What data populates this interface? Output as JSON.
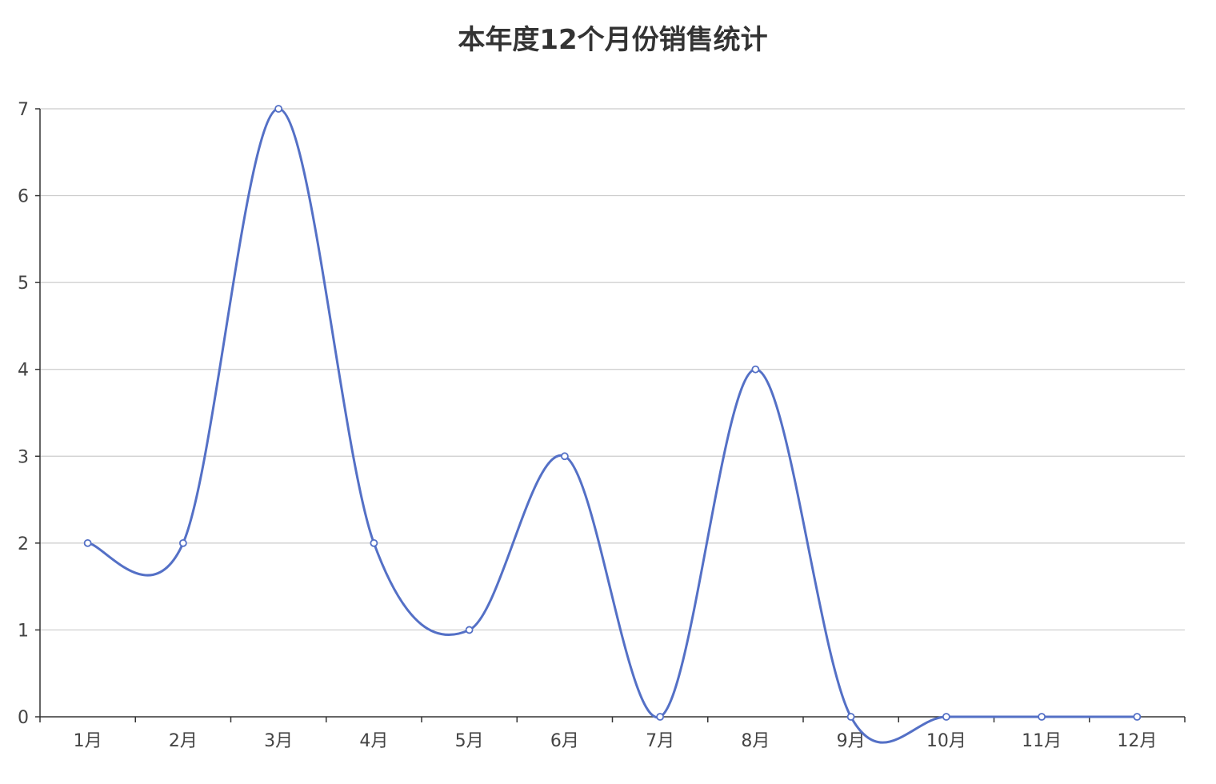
{
  "chart_data": {
    "type": "line",
    "title": "本年度12个月份销售统计",
    "categories": [
      "1月",
      "2月",
      "3月",
      "4月",
      "5月",
      "6月",
      "7月",
      "8月",
      "9月",
      "10月",
      "11月",
      "12月"
    ],
    "series": [
      {
        "values": [
          2,
          2,
          7,
          2,
          1,
          3,
          0,
          4,
          0,
          0,
          0,
          0
        ]
      }
    ],
    "ylim": [
      0,
      7
    ],
    "yticks": [
      0,
      1,
      2,
      3,
      4,
      5,
      6,
      7
    ],
    "smooth": true,
    "grid": "horizontal",
    "colors": {
      "series": "#5470c6",
      "axis": "#333333",
      "grid": "#cccccc"
    }
  }
}
